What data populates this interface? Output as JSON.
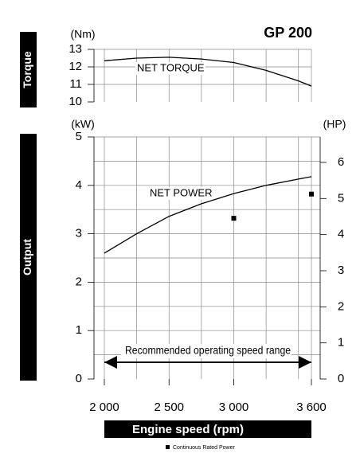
{
  "chart_data": [
    {
      "type": "line",
      "title": "GP 200",
      "side_label": "Torque",
      "ylabel": "(Nm)",
      "x": [
        2000,
        2250,
        2500,
        2750,
        3000,
        3250,
        3500,
        3600
      ],
      "series": [
        {
          "name": "NET TORQUE",
          "color": "#000000",
          "values": [
            12.35,
            12.5,
            12.55,
            12.45,
            12.25,
            11.8,
            11.2,
            10.9
          ]
        }
      ],
      "xlim": [
        2000,
        3600
      ],
      "ylim": [
        10,
        13
      ],
      "yticks": [
        10,
        11,
        12,
        13
      ],
      "xgrid": [
        2000,
        2250,
        2500,
        2750,
        3000,
        3250,
        3500,
        3600
      ],
      "ygrid": [
        11,
        12,
        13
      ]
    },
    {
      "type": "line",
      "side_label": "Output",
      "ylabel": "(kW)",
      "y2label": "(HP)",
      "xlabel": "Engine speed (rpm)",
      "x": [
        2000,
        2250,
        2500,
        2750,
        3000,
        3250,
        3500,
        3600
      ],
      "series": [
        {
          "name": "NET POWER",
          "color": "#000000",
          "values": [
            2.6,
            3.0,
            3.36,
            3.62,
            3.83,
            4.0,
            4.13,
            4.18
          ]
        },
        {
          "name": "Continuous Rated Power",
          "type": "scatter",
          "color": "#000000",
          "x": [
            3000,
            3600
          ],
          "values": [
            3.32,
            3.82
          ]
        }
      ],
      "xlim": [
        2000,
        3600
      ],
      "xticks": [
        {
          "value": 2000,
          "label": "2 000"
        },
        {
          "value": 2500,
          "label": "2 500"
        },
        {
          "value": 3000,
          "label": "3 000"
        },
        {
          "value": 3600,
          "label": "3 600"
        }
      ],
      "ylim": [
        0,
        5
      ],
      "yticks": [
        0,
        1,
        2,
        3,
        4,
        5
      ],
      "y2lim": [
        0,
        6.705
      ],
      "y2ticks": [
        0,
        1,
        2,
        3,
        4,
        5,
        6
      ],
      "xgrid": [
        2000,
        2250,
        2500,
        2750,
        3000,
        3250,
        3500,
        3600
      ],
      "ygrid": [
        0.5,
        1,
        1.5,
        2,
        2.5,
        3,
        3.5,
        4,
        4.5,
        5
      ],
      "annotation": {
        "text": "Recommended operating speed range",
        "range": [
          2000,
          3600
        ]
      }
    }
  ]
}
